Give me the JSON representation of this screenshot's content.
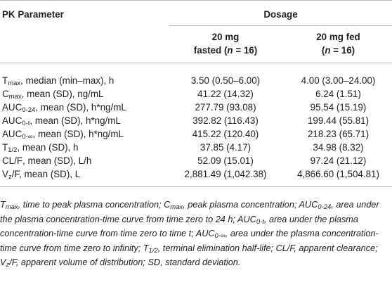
{
  "table": {
    "header": {
      "param_col": "PK Parameter",
      "dosage": "Dosage",
      "col1_line1": "20 mg",
      "col1_line2a": "fasted (",
      "col1_n": "n",
      "col1_line2b": " = 16)",
      "col2_line1": "20 mg fed",
      "col2_line2a": "(",
      "col2_n": "n",
      "col2_line2b": " = 16)"
    },
    "rows": [
      {
        "p_main": "T",
        "p_sub": "max",
        "p_rest": ", median (min–max), h",
        "fasted": "3.50 (0.50–6.00)",
        "fed": "4.00 (3.00–24.00)"
      },
      {
        "p_main": "C",
        "p_sub": "max",
        "p_rest": ", mean (SD), ng/mL",
        "fasted": "41.22 (14.32)",
        "fed": "6.24 (1.51)"
      },
      {
        "p_main": "AUC",
        "p_sub": "0-24",
        "p_rest": ", mean (SD), h*ng/mL",
        "fasted": "277.79 (93.08)",
        "fed": "95.54 (15.19)"
      },
      {
        "p_main": "AUC",
        "p_sub": "0-t",
        "p_rest": ", mean (SD), h*ng/mL",
        "fasted": "392.82 (116.43)",
        "fed": "199.44 (55.81)"
      },
      {
        "p_main": "AUC",
        "p_sub": "0-∞",
        "p_rest": ", mean (SD), h*ng/mL",
        "fasted": "415.22 (120.40)",
        "fed": "218.23 (65.71)"
      },
      {
        "p_main": "T",
        "p_sub": "1/2",
        "p_rest": ", mean (SD), h",
        "fasted": "37.85 (4.17)",
        "fed": "34.98 (8.32)"
      },
      {
        "p_main": "CL/F",
        "p_sub": "",
        "p_rest": ", mean (SD), L/h",
        "fasted": "52.09 (15.01)",
        "fed": "97.24 (21.12)"
      },
      {
        "p_main": "V",
        "p_sub": "z",
        "p_rest": "/F, mean (SD), L",
        "fasted": "2,881.49 (1,042.38)",
        "fed": "4,866.60 (1,504.81)"
      }
    ]
  },
  "footnote": {
    "s1a": "T",
    "s1b": "max",
    "s1c": ", time to peak plasma concentration; ",
    "s2a": "C",
    "s2b": "max",
    "s2c": ", peak plasma concentration; ",
    "s3a": "AUC",
    "s3b": "0-24",
    "s3c": ", area under the plasma concentration-time curve from time zero to 24 h; ",
    "s4a": "AUC",
    "s4b": "0-t",
    "s4c": ", area under the plasma concentration-time curve from time zero to time t; ",
    "s5a": "AUC",
    "s5b": "0-∞",
    "s5c": ", area under the plasma concentration-time curve from time zero to infinity; ",
    "s6a": "T",
    "s6b": "1/2",
    "s6c": ", terminal elimination half-life; CL/F, apparent clearance; ",
    "s7a": "V",
    "s7b": "z",
    "s7c": "/F, apparent volume of distribution; SD, standard deviation."
  }
}
